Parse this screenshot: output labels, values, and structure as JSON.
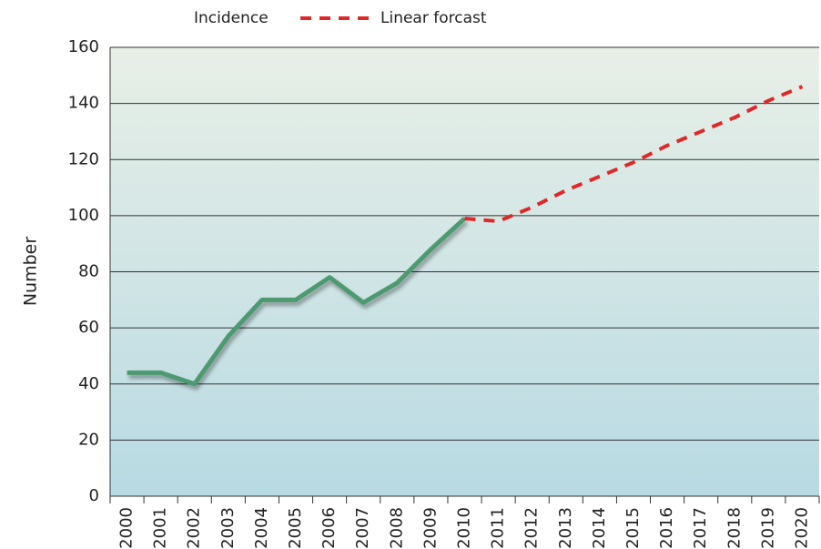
{
  "chart_data": {
    "type": "line",
    "categories": [
      "2000",
      "2001",
      "2002",
      "2003",
      "2004",
      "2005",
      "2006",
      "2007",
      "2008",
      "2009",
      "2010",
      "2011",
      "2012",
      "2013",
      "2014",
      "2015",
      "2016",
      "2017",
      "2018",
      "2019",
      "2020"
    ],
    "series": [
      {
        "name": "Incidence",
        "color": "#4e9a6f",
        "dash": false,
        "values": [
          44,
          44,
          40,
          57,
          70,
          70,
          78,
          69,
          76,
          88,
          99,
          null,
          null,
          null,
          null,
          null,
          null,
          null,
          null,
          null,
          null
        ]
      },
      {
        "name": "Linear forcast",
        "color": "#e02828",
        "dash": true,
        "values": [
          null,
          null,
          null,
          null,
          null,
          null,
          null,
          null,
          null,
          null,
          99,
          98,
          103,
          109,
          114,
          119,
          125,
          130,
          135,
          141,
          146
        ]
      }
    ],
    "y_label": "Number",
    "ylim": [
      0,
      160
    ],
    "yticks": [
      0,
      20,
      40,
      60,
      80,
      100,
      120,
      140,
      160
    ],
    "grid": true
  }
}
